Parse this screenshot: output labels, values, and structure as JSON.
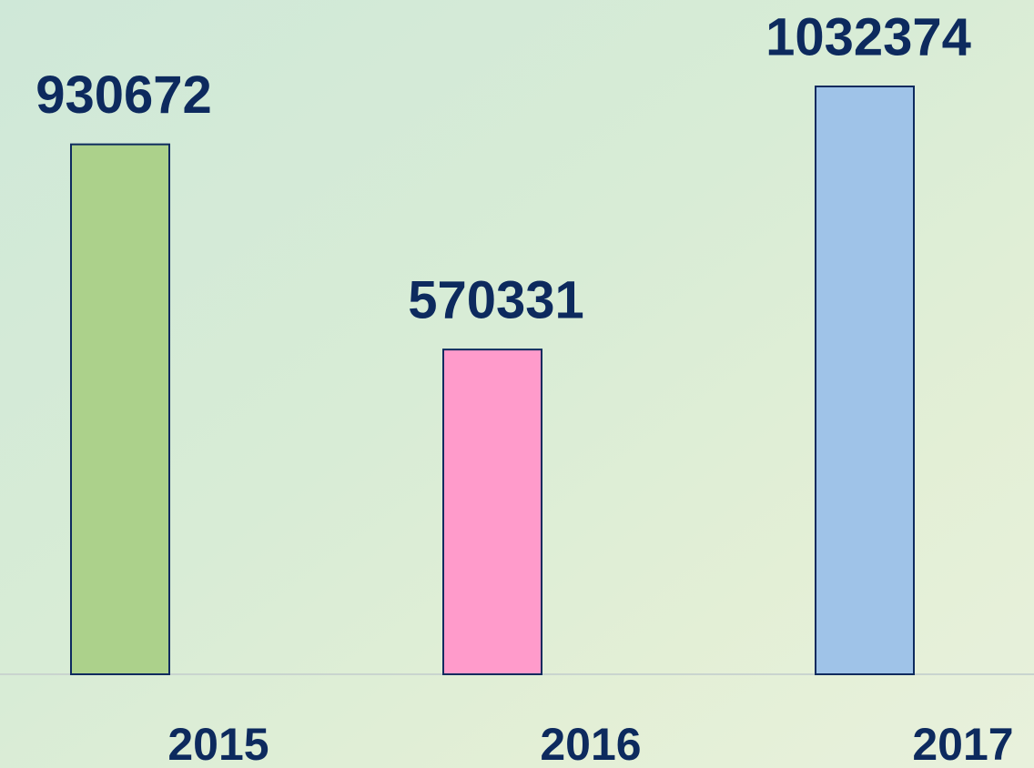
{
  "chart_data": {
    "type": "bar",
    "categories": [
      "2015",
      "2016",
      "2017"
    ],
    "values": [
      930672,
      570331,
      1032374
    ],
    "colors": [
      "#acd18b",
      "#ff9bcb",
      "#9fc3e8"
    ]
  }
}
